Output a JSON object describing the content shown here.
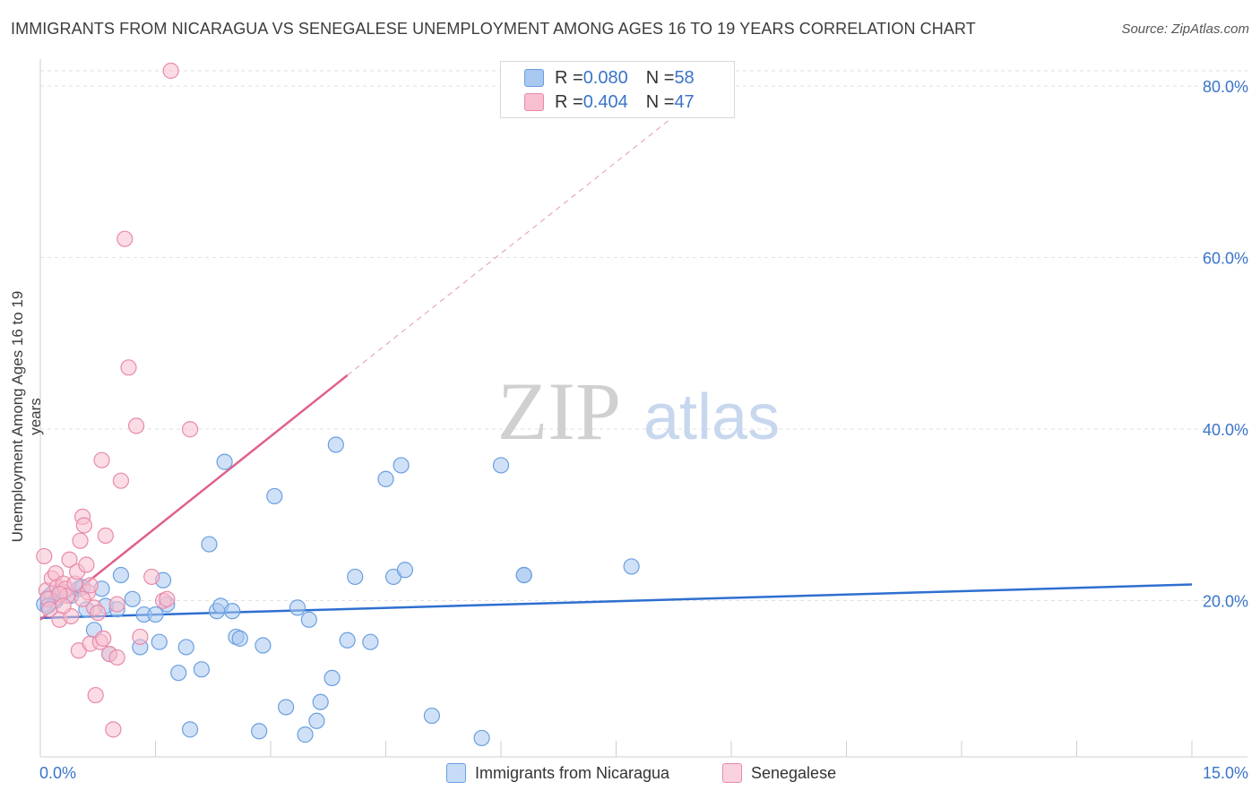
{
  "title": "IMMIGRANTS FROM NICARAGUA VS SENEGALESE UNEMPLOYMENT AMONG AGES 16 TO 19 YEARS CORRELATION CHART",
  "source": "Source: ZipAtlas.com",
  "watermark": {
    "zip": "ZIP",
    "atlas": "atlas"
  },
  "legend": {
    "rows": [
      {
        "r_label": "R = ",
        "r_value": "0.080",
        "n_label": "N = ",
        "n_value": "58",
        "color": "#a9c8f0",
        "border": "#6a9fe0"
      },
      {
        "r_label": "R = ",
        "r_value": "0.404",
        "n_label": "N = ",
        "n_value": "47",
        "color": "#f7bfd0",
        "border": "#e88aa9"
      }
    ]
  },
  "chart_data": {
    "type": "scatter",
    "xlabel": "",
    "ylabel": "Unemployment Among Ages 16 to 19 years",
    "xlim": [
      0,
      15
    ],
    "ylim": [
      0,
      80
    ],
    "x_tick_labels": [
      "0.0%",
      "15.0%"
    ],
    "y_tick_labels": [
      "20.0%",
      "40.0%",
      "60.0%",
      "80.0%"
    ],
    "y_ticks": [
      20,
      40,
      60,
      80
    ],
    "grid": "horizontal dashed",
    "legend_position": "bottom",
    "series": [
      {
        "name": "Immigrants from Nicaragua",
        "color": "#6a9fe0",
        "fill": "#a9c8f0",
        "trend": {
          "x": [
            0,
            15
          ],
          "y": [
            16.2,
            20.1
          ],
          "color": "#2e6fd0"
        },
        "points": [
          [
            0.05,
            17.8
          ],
          [
            0.1,
            18.6
          ],
          [
            0.15,
            19.0
          ],
          [
            0.2,
            18.2
          ],
          [
            0.3,
            19.2
          ],
          [
            0.4,
            18.8
          ],
          [
            0.5,
            19.6
          ],
          [
            0.55,
            19.8
          ],
          [
            0.6,
            17.2
          ],
          [
            0.7,
            14.8
          ],
          [
            0.8,
            19.6
          ],
          [
            0.85,
            17.6
          ],
          [
            0.9,
            12.0
          ],
          [
            1.0,
            17.2
          ],
          [
            1.05,
            21.2
          ],
          [
            1.2,
            18.4
          ],
          [
            1.3,
            12.8
          ],
          [
            1.35,
            16.6
          ],
          [
            1.5,
            16.6
          ],
          [
            1.55,
            13.4
          ],
          [
            1.6,
            20.6
          ],
          [
            1.65,
            17.8
          ],
          [
            1.8,
            9.8
          ],
          [
            1.9,
            12.8
          ],
          [
            1.95,
            3.2
          ],
          [
            2.1,
            10.2
          ],
          [
            2.2,
            24.8
          ],
          [
            2.3,
            17.0
          ],
          [
            2.35,
            17.6
          ],
          [
            2.4,
            34.4
          ],
          [
            2.5,
            17.0
          ],
          [
            2.55,
            14.0
          ],
          [
            2.6,
            13.8
          ],
          [
            2.85,
            3.0
          ],
          [
            2.9,
            13.0
          ],
          [
            3.05,
            30.4
          ],
          [
            3.2,
            5.8
          ],
          [
            3.35,
            17.4
          ],
          [
            3.45,
            2.6
          ],
          [
            3.5,
            16.0
          ],
          [
            3.6,
            4.2
          ],
          [
            3.65,
            6.4
          ],
          [
            3.8,
            9.2
          ],
          [
            3.85,
            36.4
          ],
          [
            4.0,
            13.6
          ],
          [
            4.1,
            21.0
          ],
          [
            4.3,
            13.4
          ],
          [
            4.5,
            32.4
          ],
          [
            4.6,
            21.0
          ],
          [
            4.7,
            34.0
          ],
          [
            4.75,
            21.8
          ],
          [
            5.1,
            4.8
          ],
          [
            5.75,
            2.2
          ],
          [
            6.0,
            34.0
          ],
          [
            6.3,
            21.2
          ],
          [
            6.3,
            21.2
          ],
          [
            7.7,
            22.2
          ],
          [
            0.1,
            17.6
          ]
        ]
      },
      {
        "name": "Senegalese",
        "color": "#e88aa9",
        "fill": "#f7bfd0",
        "trend": {
          "x": [
            0,
            4
          ],
          "y": [
            16.0,
            44.5
          ],
          "dash_to": [
            9.0,
            80.0
          ],
          "color": "#e0608a"
        },
        "points": [
          [
            0.05,
            23.4
          ],
          [
            0.08,
            19.4
          ],
          [
            0.1,
            18.4
          ],
          [
            0.12,
            17.2
          ],
          [
            0.15,
            20.8
          ],
          [
            0.2,
            21.4
          ],
          [
            0.22,
            19.8
          ],
          [
            0.25,
            16.0
          ],
          [
            0.3,
            20.2
          ],
          [
            0.33,
            19.6
          ],
          [
            0.35,
            18.8
          ],
          [
            0.38,
            23.0
          ],
          [
            0.4,
            16.4
          ],
          [
            0.45,
            20.2
          ],
          [
            0.48,
            21.6
          ],
          [
            0.5,
            12.4
          ],
          [
            0.52,
            25.2
          ],
          [
            0.55,
            28.0
          ],
          [
            0.57,
            27.0
          ],
          [
            0.6,
            22.4
          ],
          [
            0.62,
            19.2
          ],
          [
            0.65,
            13.2
          ],
          [
            0.7,
            17.4
          ],
          [
            0.72,
            7.2
          ],
          [
            0.75,
            16.8
          ],
          [
            0.78,
            13.4
          ],
          [
            0.8,
            34.6
          ],
          [
            0.82,
            13.8
          ],
          [
            0.85,
            25.8
          ],
          [
            0.9,
            12.0
          ],
          [
            0.95,
            3.2
          ],
          [
            1.0,
            11.6
          ],
          [
            1.05,
            32.2
          ],
          [
            1.1,
            60.4
          ],
          [
            1.15,
            45.4
          ],
          [
            1.25,
            38.6
          ],
          [
            1.3,
            14.0
          ],
          [
            1.45,
            21.0
          ],
          [
            1.6,
            18.2
          ],
          [
            1.65,
            18.4
          ],
          [
            1.7,
            80.0
          ],
          [
            1.95,
            38.2
          ],
          [
            0.25,
            19.0
          ],
          [
            0.3,
            17.6
          ],
          [
            0.65,
            20.0
          ],
          [
            1.0,
            17.8
          ],
          [
            0.55,
            18.4
          ]
        ]
      }
    ]
  }
}
